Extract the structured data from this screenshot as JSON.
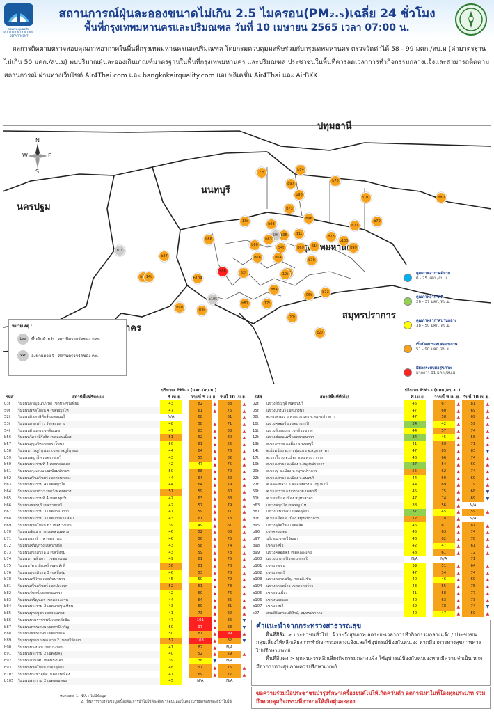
{
  "header": {
    "title_line1": "สถานการณ์ฝุ่นละอองขนาดไม่เกิน 2.5 ไมครอน(PM₂.₅)เฉลี่ย 24 ชั่วโมง",
    "title_line2": "พื้นที่กรุงเทพมหานครและปริมณฑล วันที่ 10 เมษายน 2565 เวลา 07:00 น.",
    "left_logo_text": "กรมควบคุมมลพิษ POLLUTION CONTROL DEPARTMENT"
  },
  "intro": "ผลการติดตามตรวจสอบคุณภาพอากาศในพื้นที่กรุงเทพมหานครและปริมณฑล โดยกรมควบคุมมลพิษร่วมกับกรุงเทพมหานคร ตรวจวัดค่าได้ 58 - 99 มคก./ลบ.ม (ค่ามาตรฐานไม่เกิน 50 มคก./ลบ.ม) พบปริมาณฝุ่นละอองเกินเกณฑ์มาตรฐานในพื้นที่กรุงเทพมหานคร และปริมณฑล ประชาชนในพื้นที่ควรลดเวลาการทำกิจกรรมกลางแจ้งและสามารถติดตามสถานการณ์ ผ่านทางเว็บไซต์ Air4Thai.com และ bangkokairquality.com แอปพลิเคชั่น Air4Thai และ AirBKK",
  "map": {
    "compass": {
      "n": "N",
      "s": "S",
      "e": "E",
      "w": "W"
    },
    "provinces": [
      "ปทุมธานี",
      "นนทบุรี",
      "นครปฐม",
      "กรุงเทพมหานคร",
      "สมุทรสาคร",
      "สมุทรปราการ"
    ],
    "note_title": "หมายเหตุ :",
    "note_items": [
      "ขึ้นต้นด้วย b : สถานีตรวจวัดของ กทม.",
      "ลงท้ายด้วย t : สถานีตรวจวัดของ คพ."
    ],
    "note_sample_codes": [
      "bxx",
      "xxt"
    ],
    "legend": [
      {
        "title": "คุณภาพอากาศดีมาก",
        "range": "0 - 25 มคก./ลบ.ม.",
        "color": "#00b0f0"
      },
      {
        "title": "คุณภาพอากาศดี",
        "range": "26 - 37 มคก./ลบ.ม.",
        "color": "#92d050"
      },
      {
        "title": "คุณภาพอากาศปานกลาง",
        "range": "38 - 50 มคก./ลบ.ม.",
        "color": "#ffff00"
      },
      {
        "title": "เริ่มมีผลกระทบต่อสุขภาพ",
        "range": "51 - 90 มคก./ลบ.ม.",
        "color": "#f7a21b"
      },
      {
        "title": "มีผลกระทบต่อสุขภาพ",
        "range": "มากกว่า 91 มคก./ลบ.ม.",
        "color": "#ff2020"
      }
    ],
    "pins": [
      {
        "code": "22t",
        "color": "#f7a21b"
      },
      {
        "code": "b74",
        "color": "#f7a21b"
      },
      {
        "code": "b75",
        "color": "#f7a21b"
      },
      {
        "code": "b97",
        "color": "#f7a21b"
      },
      {
        "code": "b98",
        "color": "#f7a21b"
      },
      {
        "code": "b101",
        "color": "#f7a21b"
      },
      {
        "code": "b80",
        "color": "#f7a21b"
      },
      {
        "code": "b73",
        "color": "#f7a21b"
      },
      {
        "code": "b96",
        "color": "#f7a21b"
      },
      {
        "code": "b77",
        "color": "#f7a21b"
      },
      {
        "code": "b79",
        "color": "#f7a21b"
      },
      {
        "code": "13t",
        "color": "#f7a21b"
      },
      {
        "code": "b93",
        "color": "#f7a21b"
      },
      {
        "code": "b95",
        "color": "#f7a21b"
      },
      {
        "code": "b86",
        "color": "#f7a21b"
      },
      {
        "code": "59t",
        "color": "#cccccc"
      },
      {
        "code": "81t",
        "color": "#cccccc"
      },
      {
        "code": "b87",
        "color": "#f7a21b"
      },
      {
        "code": "b89",
        "color": "#f7a21b"
      },
      {
        "code": "14t",
        "color": "#f7a21b"
      },
      {
        "code": "b104",
        "color": "#f7a21b"
      },
      {
        "code": "b68",
        "color": "#ff2020"
      },
      {
        "code": "b105",
        "color": "#cccccc"
      },
      {
        "code": "b90",
        "color": "#f7a21b"
      },
      {
        "code": "03t",
        "color": "#f7a21b"
      },
      {
        "code": "b81",
        "color": "#f7a21b"
      },
      {
        "code": "17t",
        "color": "#f7a21b"
      },
      {
        "code": "b84",
        "color": "#f7a21b"
      },
      {
        "code": "b72",
        "color": "#f7a21b"
      },
      {
        "code": "05t",
        "color": "#f7a21b"
      },
      {
        "code": "20t",
        "color": "#f7a21b"
      },
      {
        "code": "c27",
        "color": "#f7a21b"
      },
      {
        "code": "27t",
        "color": "#f7a21b"
      },
      {
        "code": "b99",
        "color": "#f7a21b"
      },
      {
        "code": "b100",
        "color": "#f7a21b"
      },
      {
        "code": "52t",
        "color": "#f7a21b"
      },
      {
        "code": "54t",
        "color": "#f7a21b"
      },
      {
        "code": "b60",
        "color": "#f7a21b"
      },
      {
        "code": "b63",
        "color": "#f7a21b"
      },
      {
        "code": "b64",
        "color": "#f7a21b"
      },
      {
        "code": "b66",
        "color": "#f7a21b"
      },
      {
        "code": "b70",
        "color": "#f7a21b"
      },
      {
        "code": "b71",
        "color": "#f7a21b"
      },
      {
        "code": "11t",
        "color": "#f7a21b"
      },
      {
        "code": "61t",
        "color": "#f7a21b"
      },
      {
        "code": "12t",
        "color": "#f7a21b"
      },
      {
        "code": "b69",
        "color": "#f7a21b"
      },
      {
        "code": "b78",
        "color": "#f7a21b"
      }
    ]
  },
  "table": {
    "unit_header": "ปริมาณ PM₂.₅ (มคก./ลบ.ม.)",
    "col_code": "รหัส",
    "col_station": "สถานีพื้นที่ริมถนน",
    "col_station_general": "สถานีพื้นที่ทั่วไป",
    "col_d1": "8 เม.ย.",
    "col_d2": "9 เม.ย.",
    "col_d3": "10 เม.ย.",
    "col_d2_sub": "วานนี้",
    "col_d3_sub": "วันนี้",
    "left_rows": [
      {
        "code": "03t",
        "name": "ริมถนนกาญจนาภิเษก เขตบางขุนเทียน",
        "d1": "43",
        "d2": "82",
        "d3": "83",
        "t2": "up",
        "t3": "up"
      },
      {
        "code": "50t",
        "name": "ริมถนนพหลโยธิน 4 เขตพญาไท",
        "d1": "47",
        "d2": "61",
        "d3": "75",
        "t2": "up",
        "t3": "up"
      },
      {
        "code": "52t",
        "name": "ริมถนนอินทรพิทักษ์ เขตธนบุรี",
        "d1": "N/A",
        "d2": "68",
        "d3": "81",
        "t2": "",
        "t3": "up"
      },
      {
        "code": "53t",
        "name": "ริมถนนลาดพร้าว วังทองหลาง",
        "d1": "48",
        "d2": "58",
        "d3": "71",
        "t2": "up",
        "t3": "up"
      },
      {
        "code": "54t",
        "name": "ริมถนนดินแดง เขตดินแดง",
        "d1": "47",
        "d2": "63",
        "d3": "83",
        "t2": "up",
        "t3": "up"
      },
      {
        "code": "b56",
        "name": "ริมถนนวิภาวดีรังสิต เขตดอนเมือง",
        "d1": "51",
        "d2": "62",
        "d3": "80",
        "t2": "up",
        "t3": "up"
      },
      {
        "code": "b57",
        "name": "ริมถนนสุขุมวิท เขตพระโขนง",
        "d1": "50",
        "d2": "61",
        "d3": "66",
        "t2": "up",
        "t3": "up"
      },
      {
        "code": "b58",
        "name": "ริมถนนราษฎร์บูรณะ เขตราษฎร์บูรณะ",
        "d1": "44",
        "d2": "64",
        "d3": "76",
        "t2": "up",
        "t3": "up"
      },
      {
        "code": "b59",
        "name": "ริมถนนพญาไท เขตราชเทวี",
        "d1": "43",
        "d2": "55",
        "d3": "82",
        "t2": "up",
        "t3": "up"
      },
      {
        "code": "b60",
        "name": "ริมถนนพระรามที่ 4 เขตคลองเตย",
        "d1": "42",
        "d2": "47",
        "d3": "75",
        "t2": "up",
        "t3": "up"
      },
      {
        "code": "b61",
        "name": "ริมถนนกรุงเกษม เขตป้อมปราบฯ",
        "d1": "50",
        "d2": "68",
        "d3": "70",
        "t2": "up",
        "t3": "up"
      },
      {
        "code": "b62",
        "name": "ริมถนนศรีนครินทร์ เขตสวนหลวง",
        "d1": "44",
        "d2": "64",
        "d3": "82",
        "t2": "up",
        "t3": "up"
      },
      {
        "code": "b63",
        "name": "ริมถนนพระราม 4 เขตพญาไท",
        "d1": "44",
        "d2": "64",
        "d3": "79",
        "t2": "up",
        "t3": "up"
      },
      {
        "code": "b64",
        "name": "ริมถนนลาดพร้าว เขตวังทองหลาง",
        "d1": "51",
        "d2": "59",
        "d3": "80",
        "t2": "up",
        "t3": "up"
      },
      {
        "code": "b65",
        "name": "ริมถนนพระรามที่ 4 เขตปทุมวัน",
        "d1": "47",
        "d2": "63",
        "d3": "83",
        "t2": "up",
        "t3": "up"
      },
      {
        "code": "b66",
        "name": "ริมถนนเพชรบุรี เขตราชเทวี",
        "d1": "42",
        "d2": "57",
        "d3": "79",
        "t2": "up",
        "t3": "up"
      },
      {
        "code": "b67",
        "name": "ริมถนนพระราม 3 เขตยานนาวา",
        "d1": "41",
        "d2": "59",
        "d3": "71",
        "t2": "up",
        "t3": "up"
      },
      {
        "code": "b68",
        "name": "ริมถนนพระราม 3 เขตบางคอแหลม",
        "d1": "43",
        "d2": "61",
        "d3": "73",
        "t2": "up",
        "t3": "up"
      },
      {
        "code": "b69",
        "name": "ริมถนนพหลโยธิน 63 เขตบางเขน",
        "d1": "39",
        "d2": "49",
        "d3": "61",
        "t2": "up",
        "t3": "up"
      },
      {
        "code": "b70",
        "name": "ริมถนนพัฒนาการ เขตสวนหลวง",
        "d1": "46",
        "d2": "52",
        "d3": "68",
        "t2": "up",
        "t3": "up"
      },
      {
        "code": "b71",
        "name": "ริมถนนนราธิวาส เขตยานนาวา",
        "d1": "46",
        "d2": "56",
        "d3": "75",
        "t2": "up",
        "t3": "up"
      },
      {
        "code": "b72",
        "name": "ริมถนนเจริญกรุง เขตบางรัก",
        "d1": "43",
        "d2": "58",
        "d3": "74",
        "t2": "up",
        "t3": "up"
      },
      {
        "code": "b73",
        "name": "ริมถนนสุขาภิบาล 1 เขตบึงกุ่ม",
        "d1": "43",
        "d2": "59",
        "d3": "73",
        "t2": "up",
        "t3": "up"
      },
      {
        "code": "b74",
        "name": "ริมถนนรามอินทรา เขตบางเขน",
        "d1": "49",
        "d2": "61",
        "d3": "75",
        "t2": "up",
        "t3": "up"
      },
      {
        "code": "b75",
        "name": "ริมถนนรัตนาธิเบศร์ เขตหลักสี่",
        "d1": "56",
        "d2": "61",
        "d3": "78",
        "t2": "up",
        "t3": "up"
      },
      {
        "code": "b76",
        "name": "ริมถนนสุขาภิบาล 3 เขตบึงกุ่ม",
        "d1": "46",
        "d2": "53",
        "d3": "78",
        "t2": "up",
        "t3": "up"
      },
      {
        "code": "b78",
        "name": "ริมถนนเสรีไทย เขตคันนายาว",
        "d1": "45",
        "d2": "50",
        "d3": "79",
        "t2": "up",
        "t3": "up"
      },
      {
        "code": "b81",
        "name": "ริมถนนศรีนครินทร์ เขตประเวศ",
        "d1": "52",
        "d2": "61",
        "d3": "78",
        "t2": "up",
        "t3": "up"
      },
      {
        "code": "b82",
        "name": "ริมถนนจันทน์ เขตยานนาวา",
        "d1": "42",
        "d2": "60",
        "d3": "76",
        "t2": "up",
        "t3": "up"
      },
      {
        "code": "b83",
        "name": "ริมถนนเจริญนคร เขตคลองสาน",
        "d1": "44",
        "d2": "64",
        "d3": "85",
        "t2": "up",
        "t3": "up"
      },
      {
        "code": "b84",
        "name": "ริมถนนพระราม 2 เขตบางขุนเทียน",
        "d1": "43",
        "d2": "69",
        "d3": "81",
        "t2": "up",
        "t3": "up"
      },
      {
        "code": "b85",
        "name": "ริมถนนพุทธบูชา เขตจอมทอง",
        "d1": "41",
        "d2": "73",
        "d3": "82",
        "t2": "up",
        "t3": "up"
      },
      {
        "code": "b86",
        "name": "ริมถนนบรมราชชนนี เขตตลิ่งชัน",
        "d1": "47",
        "d2": "101",
        "d3": "86",
        "t2": "up",
        "t3": "down"
      },
      {
        "code": "b87",
        "name": "ริมถนนเพชรเกษม เขตภาษีเจริญ",
        "d1": "50",
        "d2": "97",
        "d3": "83",
        "t2": "up",
        "t3": "down"
      },
      {
        "code": "b88",
        "name": "ริมถนนเพชรเกษม เขตบางแค",
        "d1": "50",
        "d2": "81",
        "d3": "99",
        "t2": "up",
        "t3": "up"
      },
      {
        "code": "b89",
        "name": "ริมถนนพุทธมณฑล สาย 2 เขตทวีวัฒนา",
        "d1": "57",
        "d2": "103",
        "d3": "82",
        "t2": "up",
        "t3": "down"
      },
      {
        "code": "b90",
        "name": "ริมถนนบางบอน เขตบางบอน",
        "d1": "41",
        "d2": "82",
        "d3": "N/A",
        "t2": "up",
        "t3": ""
      },
      {
        "code": "b91",
        "name": "ริมถนนพระราม 2 เขตทุ่งครุ",
        "d1": "40",
        "d2": "52",
        "d3": "59",
        "t2": "up",
        "t3": "up"
      },
      {
        "code": "b92",
        "name": "ริมถนนสามเสน เขตพระนคร",
        "d1": "39",
        "d2": "38",
        "d3": "N/A",
        "t2": "down",
        "t3": ""
      },
      {
        "code": "b93",
        "name": "ริมถนนพหลโยธิน เขตจตุจักร",
        "d1": "48",
        "d2": "57",
        "d3": "75",
        "t2": "up",
        "t3": "up"
      },
      {
        "code": "b103",
        "name": "ริมถนนประชาอุทิศ เขตดอนเมือง",
        "d1": "41",
        "d2": "69",
        "d3": "77",
        "t2": "up",
        "t3": "up"
      },
      {
        "code": "b105",
        "name": "ริมถนนพระราม 2 เขตจอมทอง",
        "d1": "45",
        "d2": "N/A",
        "d3": "N/A",
        "t2": "",
        "t3": ""
      }
    ],
    "right_rows": [
      {
        "code": "02t",
        "name": "แขวงหิรัญรูจี เขตธนบุรี",
        "d1": "45",
        "d2": "67",
        "d3": "81",
        "t2": "up",
        "t3": "up"
      },
      {
        "code": "05t",
        "name": "แขวงบางนา เขตบางนา",
        "d1": "47",
        "d2": "60",
        "d3": "69",
        "t2": "up",
        "t3": "up"
      },
      {
        "code": "08t",
        "name": "ต.ทรงคนอง อ.พระประแดง จ.สมุทรปราการ",
        "d1": "47",
        "d2": "58",
        "d3": "69",
        "t2": "up",
        "t3": "up"
      },
      {
        "code": "10t",
        "name": "แขวงคลองจั่น เขตบางกะปิ",
        "d1": "34",
        "d2": "42",
        "d3": "59",
        "t2": "up",
        "t3": "up"
      },
      {
        "code": "11t",
        "name": "แขวงห้วยขวาง เขตห้วยขวาง",
        "d1": "44",
        "d2": "57",
        "d3": "74",
        "t2": "up",
        "t3": "up"
      },
      {
        "code": "12t",
        "name": "แขวงช่องนนทรี เขตยานนาวา",
        "d1": "34",
        "d2": "45",
        "d3": "58",
        "t2": "up",
        "t3": "up"
      },
      {
        "code": "13t",
        "name": "ต.บางกรวย อ.เมือง จ.นนทบุรี",
        "d1": "41",
        "d2": "60",
        "d3": "71",
        "t2": "up",
        "t3": "up"
      },
      {
        "code": "14t",
        "name": "ต.อ้อมน้อย อ.กระทุ่มแบน จ.สมุทรสาคร",
        "d1": "47",
        "d2": "85",
        "d3": "83",
        "t2": "up",
        "t3": "down"
      },
      {
        "code": "17t",
        "name": "ต.บางโปรง อ.เมือง จ.สมุทรปราการ",
        "d1": "46",
        "d2": "66",
        "d3": "74",
        "t2": "up",
        "t3": "up"
      },
      {
        "code": "19t",
        "name": "ต.บางเสาธง อ.เมือง จ.สมุทรปราการ",
        "d1": "37",
        "d2": "54",
        "d3": "60",
        "t2": "up",
        "t3": "up"
      },
      {
        "code": "20t",
        "name": "ต.บางปู อ.เมือง จ.สมุทรปราการ",
        "d1": "55",
        "d2": "62",
        "d3": "74",
        "t2": "up",
        "t3": "up"
      },
      {
        "code": "22t",
        "name": "ต.บางเสาธง อ.เมือง จ.นนทบุรี",
        "d1": "44",
        "d2": "59",
        "d3": "69",
        "t2": "up",
        "t3": "up"
      },
      {
        "code": "27t",
        "name": "ต.คลองหลวง จ.คลองหลวง จ.ปทุมธานี",
        "d1": "44",
        "d2": "69",
        "d3": "79",
        "t2": "up",
        "t3": "up"
      },
      {
        "code": "59t",
        "name": "ต.บางกรวย อ.บางกรวย นนทบุรี",
        "d1": "45",
        "d2": "75",
        "d3": "68",
        "t2": "up",
        "t3": "down"
      },
      {
        "code": "61t",
        "name": "ต.มหาชัย อ.เมือง สมุทรสาคร",
        "d1": "47",
        "d2": "74",
        "d3": "69",
        "t2": "up",
        "t3": "down"
      },
      {
        "code": "b63",
        "name": "แขวงพญาไท เขตพญาไท",
        "d1": "38",
        "d2": "56",
        "d3": "N/A",
        "t2": "up",
        "t3": ""
      },
      {
        "code": "b81",
        "name": "แขวงเสนานิคม เขตจตุจักร",
        "d1": "37",
        "d2": "45",
        "d3": "59",
        "t2": "up",
        "t3": "up"
      },
      {
        "code": "81t",
        "name": "ต.บางเมือง อ.เมือง สมุทรปราการ",
        "d1": "72",
        "d2": "78",
        "d3": "N/A",
        "t2": "up",
        "t3": ""
      },
      {
        "code": "b95",
        "name": "แขวงดุสิตใหม่ เขตดุสิต",
        "d1": "46",
        "d2": "61",
        "d3": "81",
        "t2": "up",
        "t3": "up"
      },
      {
        "code": "b96",
        "name": "เขตคลองเตย",
        "d1": "45",
        "d2": "63",
        "d3": "74",
        "t2": "up",
        "t3": "up"
      },
      {
        "code": "b97",
        "name": "บริเวณเขตทวีวัฒนา",
        "d1": "46",
        "d2": "62",
        "d3": "78",
        "t2": "up",
        "t3": "up"
      },
      {
        "code": "b98",
        "name": "เขตบางซื่อ",
        "d1": "42",
        "d2": "47",
        "d3": "61",
        "t2": "up",
        "t3": "up"
      },
      {
        "code": "b99",
        "name": "แขวงคลองเตย เขตคลองเตย",
        "d1": "48",
        "d2": "61",
        "d3": "72",
        "t2": "up",
        "t3": "up"
      },
      {
        "code": "b100",
        "name": "แขวงบางกะปิ เขตบางกะปิ",
        "d1": "N/A",
        "d2": "N/A",
        "d3": "71",
        "t2": "",
        "t3": ""
      },
      {
        "code": "b101",
        "name": "เขตบางเขน",
        "d1": "39",
        "d2": "51",
        "d3": "64",
        "t2": "up",
        "t3": "up"
      },
      {
        "code": "b102",
        "name": "เขตบางกะปิ",
        "d1": "47",
        "d2": "54",
        "d3": "74",
        "t2": "up",
        "t3": "up"
      },
      {
        "code": "b103",
        "name": "แขวงตลาดขวัญ เขตตลิ่งชัน",
        "d1": "40",
        "d2": "46",
        "d3": "69",
        "t2": "up",
        "t3": "up"
      },
      {
        "code": "b104",
        "name": "แขวงลาดพร้าว เขตลาดพร้าว",
        "d1": "43",
        "d2": "55",
        "d3": "75",
        "t2": "up",
        "t3": "up"
      },
      {
        "code": "b105",
        "name": "เขตดอนเมือง",
        "d1": "41",
        "d2": "58",
        "d3": "77",
        "t2": "up",
        "t3": "up"
      },
      {
        "code": "b106",
        "name": "เขตหนองจอก",
        "d1": "40",
        "d2": "63",
        "d3": "73",
        "t2": "up",
        "t3": "up"
      },
      {
        "code": "b107",
        "name": "เขตบางพลี",
        "d1": "39",
        "d2": "78",
        "d3": "74",
        "t2": "up",
        "t3": "down"
      },
      {
        "code": "c27",
        "name": "สวนสิรินพรรษพิทักษ์, สมุทรปราการ",
        "d1": "40",
        "d2": "47",
        "d3": "59",
        "t2": "up",
        "t3": "up"
      }
    ]
  },
  "advice": {
    "heading": "คำแนะนำจากกระทรวงสาธารณสุข",
    "p1": "พื้นที่สีส้ม > ประชาชนทั่วไป : ฝ้าระวังสุขภาพ ลดระยะเวลาการทำกิจกรรมกลางแจ้ง / ประชาชนกลุ่มเสี่ยงให้หลีกเลี่ยงการทำกิจกรรมกลางแจ้งและใช้อุปกรณ์ป้องกันตนเอง หากมีอาการทางสุขภาพควรไปปรึกษาแพทย์",
    "p2": "พื้นที่สีแดง > ทุกคนควรหลีกเลี่ยงกิจกรรมกลางแจ้ง ใช้อุปกรณ์ป้องกันตนเองหากมีความจำเป็น หากมีอาการทางสุขภาพควรปรึกษาแพทย์"
  },
  "campaign": "ขอความร่วมมือประชาชนบำรุงรักษาเครื่องยนต์ไม่ให้เกิดควันดำ ลดการเผาในที่โล่งทุกประเภท รวมถึงควบคุมกิจกรรมที่อาจก่อให้เกิดฝุ่นละออง",
  "footnote": {
    "line1": "หมายเหตุ 1. N/A : ไม่มีข้อมูล",
    "line2": "2. เป็นการรายงานข้อมูลเบื้องต้น การนำไปใช้ต้องศึกษาก่อนและเป็นความรับผิดชอบของผู้นำไปใช้"
  }
}
